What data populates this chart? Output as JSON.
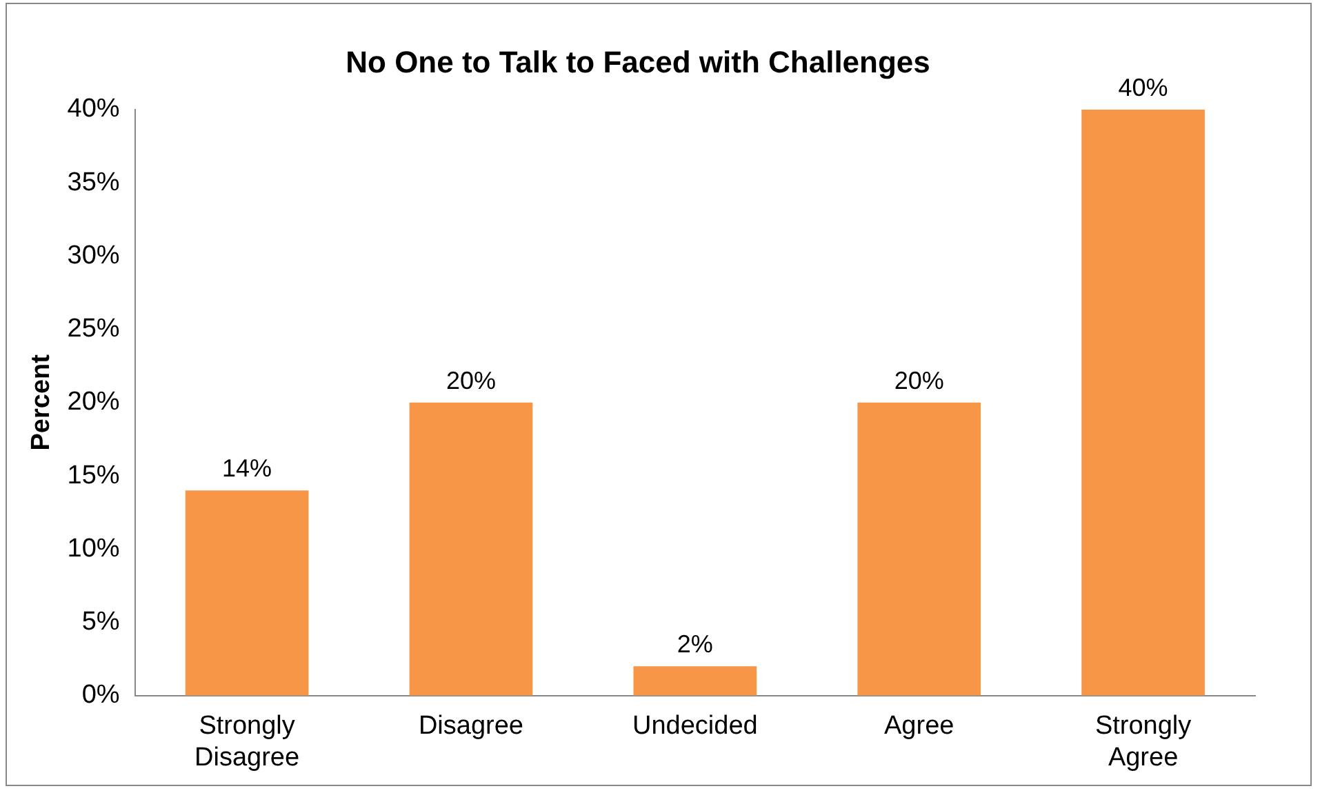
{
  "chart_data": {
    "type": "bar",
    "title": "No One to Talk to Faced with Challenges",
    "ylabel": "Percent",
    "categories": [
      "Strongly Disagree",
      "Disagree",
      "Undecided",
      "Agree",
      "Strongly Agree"
    ],
    "values": [
      14,
      20,
      2,
      20,
      40
    ],
    "value_labels": [
      "14%",
      "20%",
      "2%",
      "20%",
      "40%"
    ],
    "color": "#f79646",
    "ylim": [
      0,
      40
    ],
    "yticks": [
      {
        "value": 0,
        "label": "0%"
      },
      {
        "value": 5,
        "label": "5%"
      },
      {
        "value": 10,
        "label": "10%"
      },
      {
        "value": 15,
        "label": "15%"
      },
      {
        "value": 20,
        "label": "20%"
      },
      {
        "value": 25,
        "label": "25%"
      },
      {
        "value": 30,
        "label": "30%"
      },
      {
        "value": 35,
        "label": "35%"
      },
      {
        "value": 40,
        "label": "40%"
      }
    ],
    "grid": false,
    "legend": false
  }
}
